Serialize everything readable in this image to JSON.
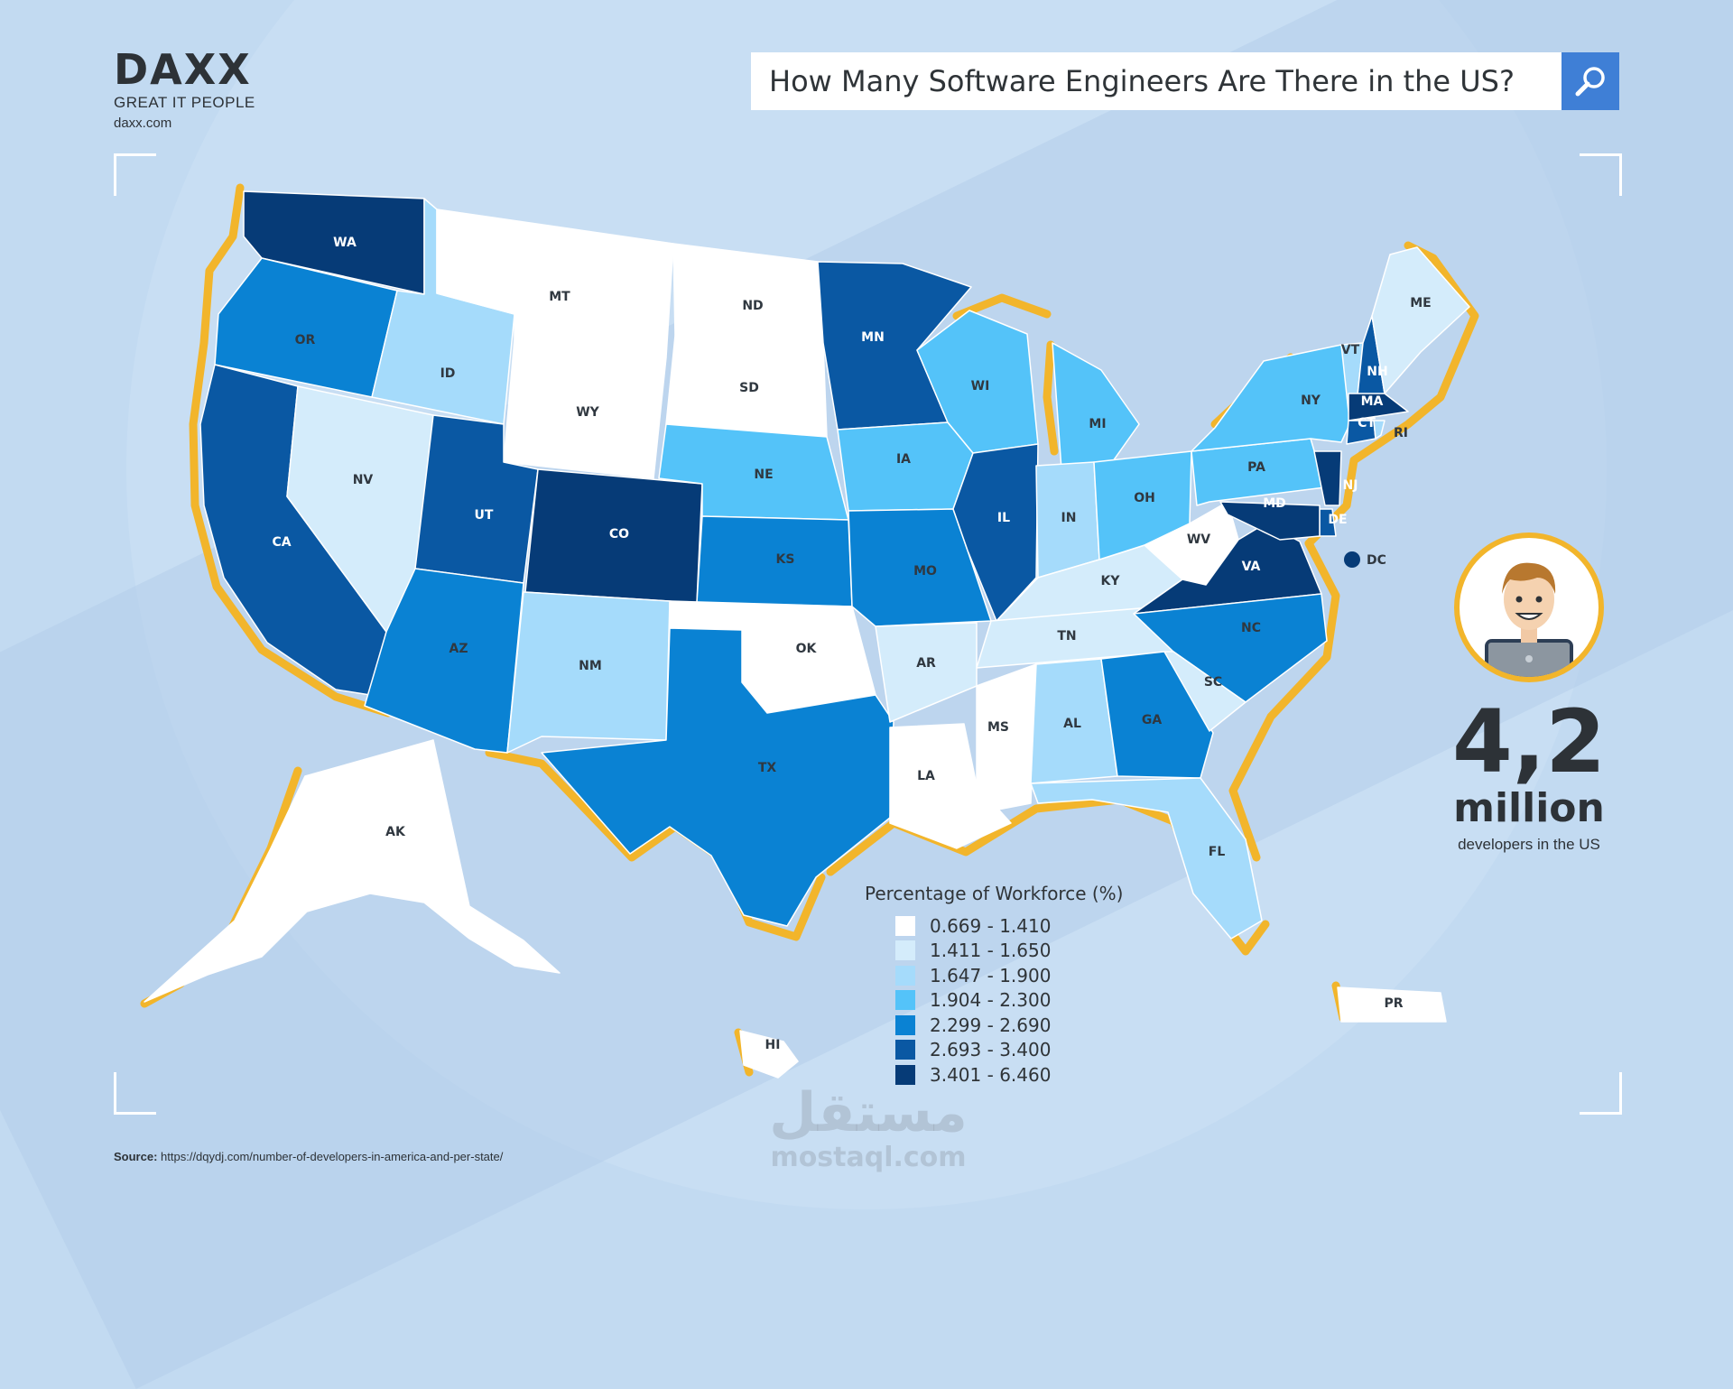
{
  "brand": {
    "logo": "DAXX",
    "tagline": "GREAT IT PEOPLE",
    "url": "daxx.com"
  },
  "search": {
    "query": "How Many Software Engineers Are There in the US?",
    "icon": "magnifier-icon"
  },
  "colors": {
    "bin1": "#ffffff",
    "bin2": "#d4ecfb",
    "bin3": "#a5dbfb",
    "bin4": "#54c3f9",
    "bin5": "#0a82d3",
    "bin6": "#0a58a3",
    "bin7": "#063b77",
    "coast": "#f2b52b",
    "label": "#303840"
  },
  "map": {
    "states": [
      {
        "code": "WA",
        "bin": 7
      },
      {
        "code": "OR",
        "bin": 5
      },
      {
        "code": "CA",
        "bin": 6
      },
      {
        "code": "ID",
        "bin": 3
      },
      {
        "code": "NV",
        "bin": 2
      },
      {
        "code": "MT",
        "bin": 1
      },
      {
        "code": "WY",
        "bin": 1
      },
      {
        "code": "UT",
        "bin": 6
      },
      {
        "code": "AZ",
        "bin": 5
      },
      {
        "code": "CO",
        "bin": 7
      },
      {
        "code": "NM",
        "bin": 3
      },
      {
        "code": "ND",
        "bin": 1
      },
      {
        "code": "SD",
        "bin": 1
      },
      {
        "code": "NE",
        "bin": 4
      },
      {
        "code": "KS",
        "bin": 5
      },
      {
        "code": "OK",
        "bin": 1
      },
      {
        "code": "TX",
        "bin": 5
      },
      {
        "code": "MN",
        "bin": 6
      },
      {
        "code": "IA",
        "bin": 4
      },
      {
        "code": "MO",
        "bin": 5
      },
      {
        "code": "AR",
        "bin": 2
      },
      {
        "code": "LA",
        "bin": 1
      },
      {
        "code": "WI",
        "bin": 4
      },
      {
        "code": "IL",
        "bin": 6
      },
      {
        "code": "MS",
        "bin": 1
      },
      {
        "code": "MI",
        "bin": 4
      },
      {
        "code": "IN",
        "bin": 3
      },
      {
        "code": "KY",
        "bin": 2
      },
      {
        "code": "TN",
        "bin": 2
      },
      {
        "code": "AL",
        "bin": 3
      },
      {
        "code": "GA",
        "bin": 5
      },
      {
        "code": "FL",
        "bin": 3
      },
      {
        "code": "OH",
        "bin": 4
      },
      {
        "code": "WV",
        "bin": 1
      },
      {
        "code": "VA",
        "bin": 7
      },
      {
        "code": "NC",
        "bin": 5
      },
      {
        "code": "SC",
        "bin": 2
      },
      {
        "code": "PA",
        "bin": 4
      },
      {
        "code": "NY",
        "bin": 4
      },
      {
        "code": "VT",
        "bin": 3
      },
      {
        "code": "NH",
        "bin": 6
      },
      {
        "code": "ME",
        "bin": 2
      },
      {
        "code": "MA",
        "bin": 7
      },
      {
        "code": "CT",
        "bin": 6
      },
      {
        "code": "RI",
        "bin": 3
      },
      {
        "code": "NJ",
        "bin": 7
      },
      {
        "code": "DE",
        "bin": 6
      },
      {
        "code": "MD",
        "bin": 7
      },
      {
        "code": "DC",
        "bin": 7
      },
      {
        "code": "AK",
        "bin": 1
      },
      {
        "code": "HI",
        "bin": 1
      },
      {
        "code": "PR",
        "bin": 1
      }
    ]
  },
  "legend": {
    "title": "Percentage of Workforce (%)",
    "items": [
      {
        "label": "0.669 - 1.410",
        "color": "#ffffff"
      },
      {
        "label": "1.411 - 1.650",
        "color": "#d4ecfb"
      },
      {
        "label": "1.647 - 1.900",
        "color": "#a5dbfb"
      },
      {
        "label": "1.904 - 2.300",
        "color": "#54c3f9"
      },
      {
        "label": "2.299 - 2.690",
        "color": "#0a82d3"
      },
      {
        "label": "2.693 - 3.400",
        "color": "#0a58a3"
      },
      {
        "label": "3.401 - 6.460",
        "color": "#063b77"
      }
    ]
  },
  "stat": {
    "value": "4,2",
    "unit": "million",
    "caption": "developers in the US"
  },
  "source": {
    "label": "Source:",
    "url": "https://dqydj.com/number-of-developers-in-america-and-per-state/"
  },
  "watermark": {
    "arabic": "مستقل",
    "latin": "mostaql.com"
  }
}
